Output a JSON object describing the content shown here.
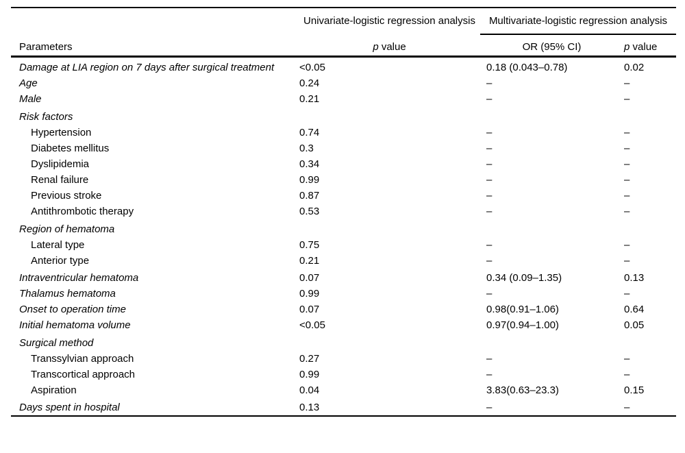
{
  "page": {
    "background_color": "#ffffff",
    "text_color": "#000000",
    "rule_color": "#000000"
  },
  "table": {
    "header": {
      "parameters": "Parameters",
      "univariate_group": "Univariate-logistic regression analysis",
      "multivariate_group": "Multivariate-logistic regression analysis",
      "or_ci": "OR (95% CI)",
      "p_italic": "p",
      "p_rest": "value"
    },
    "rows": [
      {
        "label": "Damage at LIA region on 7 days after surgical treatment",
        "type": "main",
        "p_uni": "<0.05",
        "or_ci": "0.18 (0.043–0.78)",
        "p_multi": "0.02"
      },
      {
        "label": "Age",
        "type": "main",
        "p_uni": "0.24",
        "or_ci": "–",
        "p_multi": "–"
      },
      {
        "label": "Male",
        "type": "main",
        "p_uni": "0.21",
        "or_ci": "–",
        "p_multi": "–"
      },
      {
        "label": "Risk factors",
        "type": "group",
        "p_uni": "",
        "or_ci": "",
        "p_multi": ""
      },
      {
        "label": "Hypertension",
        "type": "sub",
        "p_uni": "0.74",
        "or_ci": "–",
        "p_multi": "–"
      },
      {
        "label": "Diabetes mellitus",
        "type": "sub",
        "p_uni": "0.3",
        "or_ci": "–",
        "p_multi": "–"
      },
      {
        "label": "Dyslipidemia",
        "type": "sub",
        "p_uni": "0.34",
        "or_ci": "–",
        "p_multi": "–"
      },
      {
        "label": "Renal failure",
        "type": "sub",
        "p_uni": "0.99",
        "or_ci": "–",
        "p_multi": "–"
      },
      {
        "label": "Previous stroke",
        "type": "sub",
        "p_uni": "0.87",
        "or_ci": "–",
        "p_multi": "–"
      },
      {
        "label": "Antithrombotic therapy",
        "type": "sub",
        "p_uni": "0.53",
        "or_ci": "–",
        "p_multi": "–"
      },
      {
        "label": "Region of hematoma",
        "type": "group",
        "p_uni": "",
        "or_ci": "",
        "p_multi": ""
      },
      {
        "label": "Lateral type",
        "type": "sub",
        "p_uni": "0.75",
        "or_ci": "–",
        "p_multi": "–"
      },
      {
        "label": "Anterior type",
        "type": "sub",
        "p_uni": "0.21",
        "or_ci": "–",
        "p_multi": "–"
      },
      {
        "label": "Intraventricular hematoma",
        "type": "main",
        "p_uni": "0.07",
        "or_ci": "0.34 (0.09–1.35)",
        "p_multi": "0.13"
      },
      {
        "label": "Thalamus hematoma",
        "type": "main",
        "p_uni": "0.99",
        "or_ci": "–",
        "p_multi": "–"
      },
      {
        "label": "Onset to operation time",
        "type": "main",
        "p_uni": "0.07",
        "or_ci": "0.98(0.91–1.06)",
        "p_multi": "0.64"
      },
      {
        "label": "Initial hematoma volume",
        "type": "main",
        "p_uni": "<0.05",
        "or_ci": "0.97(0.94–1.00)",
        "p_multi": "0.05"
      },
      {
        "label": "Surgical method",
        "type": "group",
        "p_uni": "",
        "or_ci": "",
        "p_multi": ""
      },
      {
        "label": "Transsylvian approach",
        "type": "sub",
        "p_uni": "0.27",
        "or_ci": "–",
        "p_multi": "–"
      },
      {
        "label": "Transcortical approach",
        "type": "sub",
        "p_uni": "0.99",
        "or_ci": "–",
        "p_multi": "–"
      },
      {
        "label": "Aspiration",
        "type": "sub",
        "p_uni": "0.04",
        "or_ci": "3.83(0.63–23.3)",
        "p_multi": "0.15"
      },
      {
        "label": "Days spent in hospital",
        "type": "main",
        "p_uni": "0.13",
        "or_ci": "–",
        "p_multi": "–"
      }
    ]
  }
}
